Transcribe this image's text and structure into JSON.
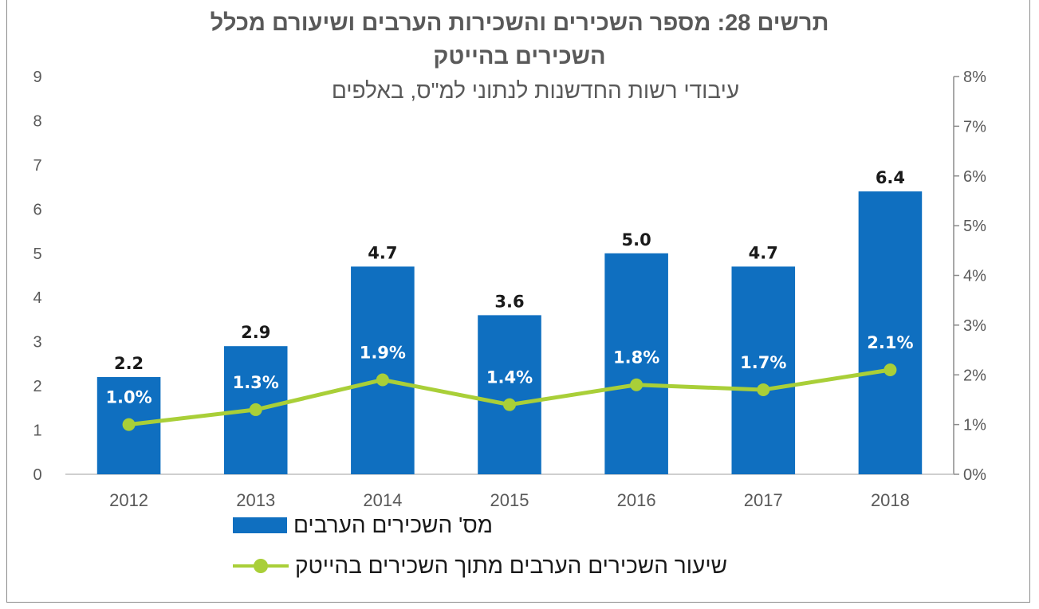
{
  "chart_data": {
    "type": "bar",
    "title_line1": "תרשים 28: מספר השכירים והשכירות הערבים ושיעורם מכלל",
    "title_line2": "השכירים בהייטק",
    "subtitle": "עיבודי רשות החדשנות לנתוני למ\"ס, באלפים",
    "categories": [
      "2012",
      "2013",
      "2014",
      "2015",
      "2016",
      "2017",
      "2018"
    ],
    "left_axis": {
      "ylim": [
        0,
        9
      ],
      "ticks": [
        "0",
        "1",
        "2",
        "3",
        "4",
        "5",
        "6",
        "7",
        "8",
        "9"
      ]
    },
    "right_axis": {
      "ylim": [
        0,
        8
      ],
      "ticks": [
        "0%",
        "1%",
        "2%",
        "3%",
        "4%",
        "5%",
        "6%",
        "7%",
        "8%"
      ]
    },
    "series": [
      {
        "name": "מס' השכירים הערבים",
        "type": "bar",
        "axis": "left",
        "color": "#0f6fc0",
        "values": [
          2.2,
          2.9,
          4.7,
          3.6,
          5.0,
          4.7,
          6.4
        ],
        "labels": [
          "2.2",
          "2.9",
          "4.7",
          "3.6",
          "5.0",
          "4.7",
          "6.4"
        ]
      },
      {
        "name": "שיעור השכירים הערבים מתוך השכירים בהייטק",
        "type": "line",
        "axis": "right",
        "color": "#a9cf38",
        "values": [
          1.0,
          1.3,
          1.9,
          1.4,
          1.8,
          1.7,
          2.1
        ],
        "labels": [
          "1.0%",
          "1.3%",
          "1.9%",
          "1.4%",
          "1.8%",
          "1.7%",
          "2.1%"
        ]
      }
    ],
    "grid": false,
    "legend_position": "bottom"
  }
}
